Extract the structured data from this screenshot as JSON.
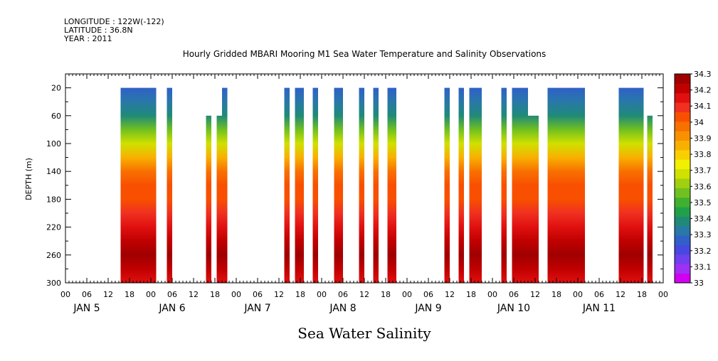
{
  "header": {
    "longitude": "LONGITUDE : 122W(-122)",
    "latitude": "LATITUDE : 36.8N",
    "year": "YEAR : 2011"
  },
  "chart_data": {
    "type": "heatmap",
    "title": "Hourly Gridded MBARI Mooring M1 Sea Water Temperature and Salinity Observations",
    "subtitle": "Sea Water Salinity",
    "ylabel": "DEPTH (m)",
    "xlabel": "",
    "x_range_hours": [
      0,
      168
    ],
    "ylim": [
      300,
      0
    ],
    "y_ticks": [
      20,
      60,
      100,
      140,
      180,
      220,
      260,
      300
    ],
    "x_hour_ticks": [
      "00",
      "06",
      "12",
      "18",
      "00",
      "06",
      "12",
      "18",
      "00",
      "06",
      "12",
      "18",
      "00",
      "06",
      "12",
      "18",
      "00",
      "06",
      "12",
      "18",
      "00",
      "06",
      "12",
      "18",
      "00",
      "06",
      "12",
      "18",
      "00"
    ],
    "day_labels": [
      "JAN  5",
      "JAN  6",
      "JAN  7",
      "JAN  8",
      "JAN  9",
      "JAN  10",
      "JAN  11"
    ],
    "colorbar": {
      "levels": [
        33,
        33.1,
        33.2,
        33.3,
        33.4,
        33.5,
        33.6,
        33.7,
        33.8,
        33.9,
        34,
        34.1,
        34.2,
        34.3
      ],
      "level_labels": [
        "33",
        "33.1",
        "33.2",
        "33.3",
        "33.4",
        "33.5",
        "33.6",
        "33.7",
        "33.8",
        "33.9",
        "34",
        "34.1",
        "34.2",
        "34.3"
      ],
      "colors": [
        "#d200f0",
        "#a030f5",
        "#7040ee",
        "#4848e0",
        "#3060c8",
        "#2878a8",
        "#208a78",
        "#20a048",
        "#40b030",
        "#70c020",
        "#a0d010",
        "#d0e000",
        "#f0f000",
        "#f8d000",
        "#f8b000",
        "#f89000",
        "#f87000",
        "#f85000",
        "#f03020",
        "#e01010",
        "#c00000",
        "#a00000"
      ]
    },
    "profile": [
      {
        "depth": 20,
        "value": 33.27
      },
      {
        "depth": 40,
        "value": 33.32
      },
      {
        "depth": 60,
        "value": 33.4
      },
      {
        "depth": 80,
        "value": 33.55
      },
      {
        "depth": 100,
        "value": 33.7
      },
      {
        "depth": 120,
        "value": 33.85
      },
      {
        "depth": 140,
        "value": 34.0
      },
      {
        "depth": 160,
        "value": 34.05
      },
      {
        "depth": 180,
        "value": 34.08
      },
      {
        "depth": 200,
        "value": 34.12
      },
      {
        "depth": 220,
        "value": 34.18
      },
      {
        "depth": 240,
        "value": 34.22
      },
      {
        "depth": 260,
        "value": 34.27
      },
      {
        "depth": 280,
        "value": 34.22
      },
      {
        "depth": 300,
        "value": 34.2
      }
    ],
    "data_blocks": [
      {
        "start_hour": 15.5,
        "end_hour": 25.5,
        "top_depth": 20
      },
      {
        "start_hour": 28.5,
        "end_hour": 30,
        "top_depth": 20
      },
      {
        "start_hour": 39.5,
        "end_hour": 41,
        "top_depth": 60
      },
      {
        "start_hour": 42.5,
        "end_hour": 44,
        "top_depth": 60
      },
      {
        "start_hour": 44,
        "end_hour": 45.5,
        "top_depth": 20
      },
      {
        "start_hour": 61.5,
        "end_hour": 63,
        "top_depth": 20
      },
      {
        "start_hour": 64.5,
        "end_hour": 67,
        "top_depth": 20
      },
      {
        "start_hour": 69.5,
        "end_hour": 71,
        "top_depth": 20
      },
      {
        "start_hour": 75.5,
        "end_hour": 78,
        "top_depth": 20
      },
      {
        "start_hour": 82.5,
        "end_hour": 84,
        "top_depth": 20
      },
      {
        "start_hour": 86.5,
        "end_hour": 88,
        "top_depth": 20
      },
      {
        "start_hour": 90.5,
        "end_hour": 93,
        "top_depth": 20
      },
      {
        "start_hour": 106.5,
        "end_hour": 108,
        "top_depth": 20
      },
      {
        "start_hour": 110.5,
        "end_hour": 112,
        "top_depth": 20
      },
      {
        "start_hour": 113.5,
        "end_hour": 117,
        "top_depth": 20
      },
      {
        "start_hour": 122.5,
        "end_hour": 124,
        "top_depth": 20
      },
      {
        "start_hour": 125.5,
        "end_hour": 130,
        "top_depth": 20
      },
      {
        "start_hour": 130,
        "end_hour": 133,
        "top_depth": 60
      },
      {
        "start_hour": 135.5,
        "end_hour": 146,
        "top_depth": 20
      },
      {
        "start_hour": 155.5,
        "end_hour": 162.5,
        "top_depth": 20
      },
      {
        "start_hour": 163.5,
        "end_hour": 165,
        "top_depth": 60
      }
    ]
  }
}
